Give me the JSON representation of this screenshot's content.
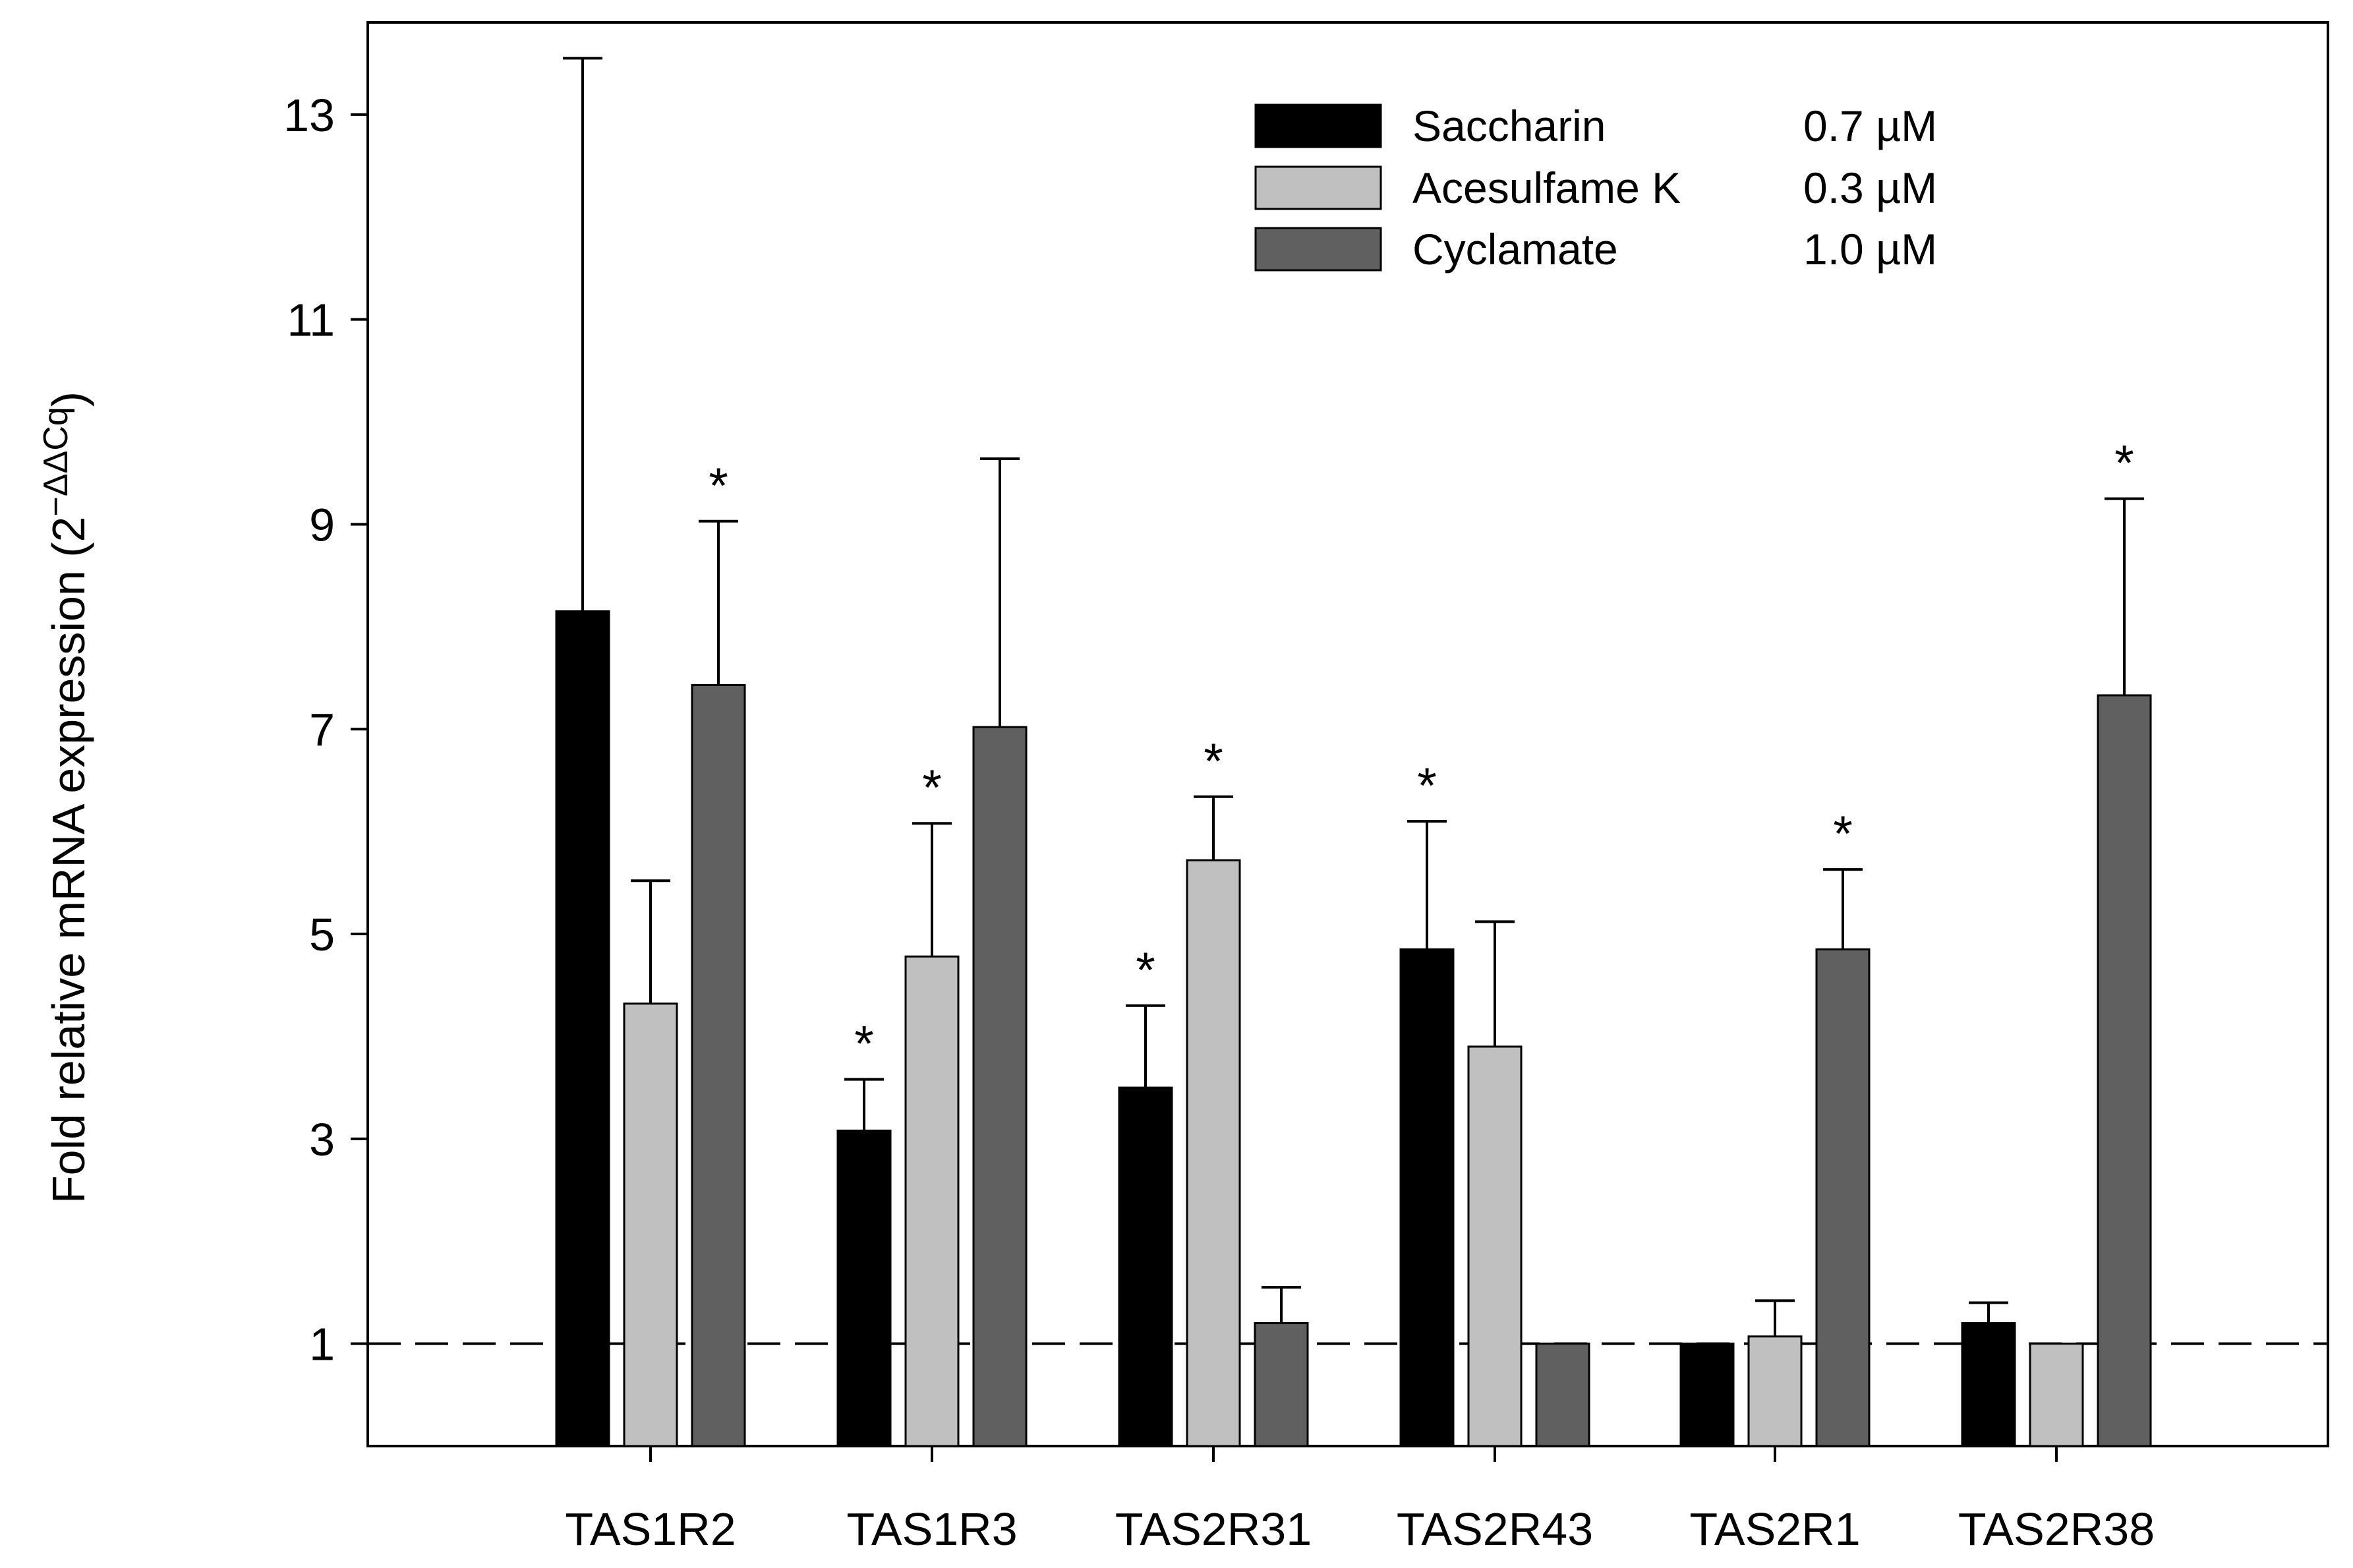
{
  "chart_data": {
    "type": "bar",
    "title": "",
    "xlabel": "",
    "ylabel": "Fold relative mRNA expression (2",
    "ylabel_superscript": "−ΔΔCq",
    "ylabel_close": ")",
    "ylim": [
      0,
      13.9
    ],
    "yticks": [
      1,
      3,
      5,
      7,
      9,
      11,
      13
    ],
    "baseline_value": 1,
    "categories": [
      "TAS1R2",
      "TAS1R3",
      "TAS2R31",
      "TAS2R43",
      "TAS2R1",
      "TAS2R38"
    ],
    "series": [
      {
        "name": "Saccharin",
        "concentration": "0.7 µM",
        "color": "#000000",
        "values": [
          8.15,
          3.08,
          3.5,
          4.85,
          1.0,
          1.2
        ],
        "errors": [
          5.4,
          0.5,
          0.8,
          1.25,
          0.0,
          0.2
        ],
        "significant": [
          false,
          true,
          true,
          true,
          false,
          false
        ]
      },
      {
        "name": "Acesulfame K",
        "concentration": "0.3 µM",
        "color": "#c0c0c0",
        "values": [
          4.32,
          4.78,
          5.72,
          3.9,
          1.07,
          1.0
        ],
        "errors": [
          1.2,
          1.3,
          0.62,
          1.22,
          0.35,
          0.0
        ],
        "significant": [
          false,
          true,
          true,
          false,
          false,
          false
        ]
      },
      {
        "name": "Cyclamate",
        "concentration": "1.0 µM",
        "color": "#606060",
        "values": [
          7.43,
          7.02,
          1.2,
          1.0,
          4.85,
          7.33
        ],
        "errors": [
          1.6,
          2.62,
          0.35,
          0.0,
          0.78,
          1.92
        ],
        "significant": [
          true,
          false,
          false,
          false,
          true,
          true
        ]
      }
    ],
    "significance_marker": "*",
    "legend_position": "top-right"
  }
}
